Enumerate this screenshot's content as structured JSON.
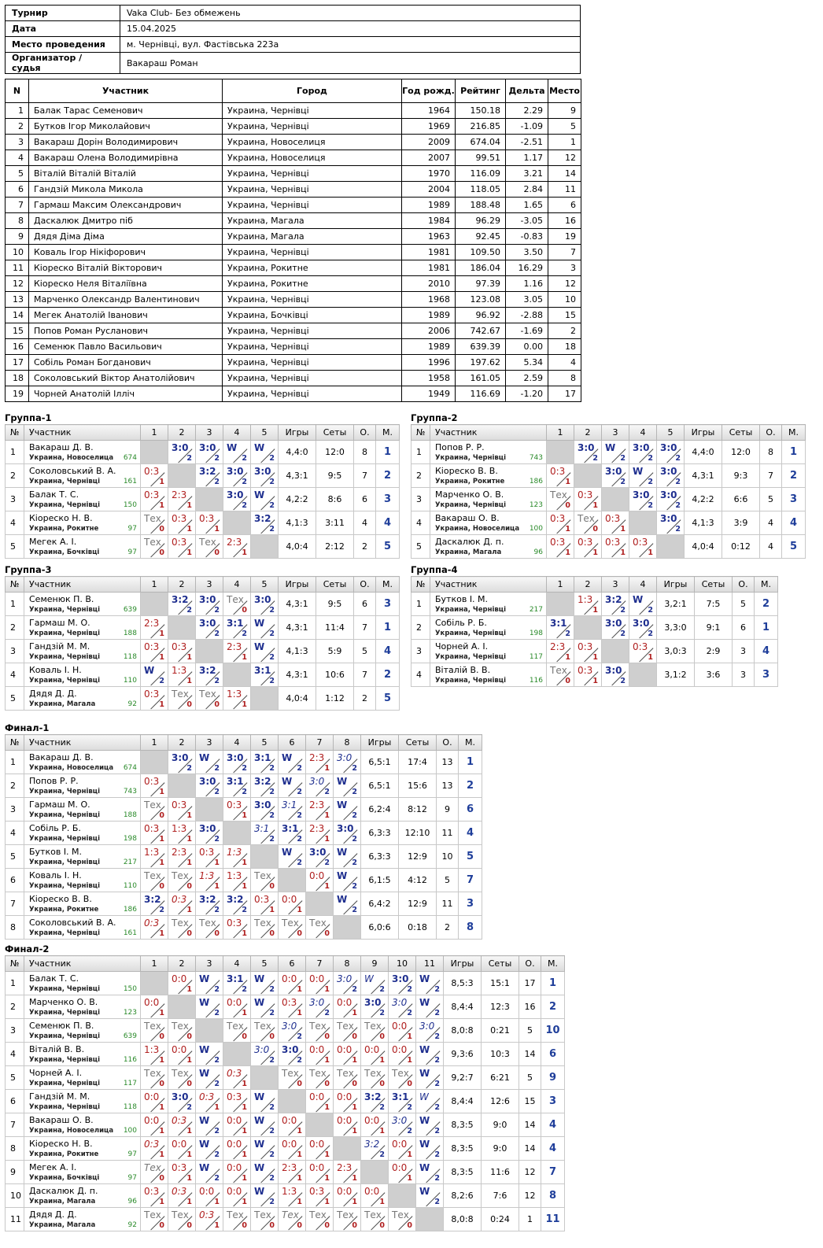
{
  "info": [
    {
      "k": "Турнир",
      "v": "Vaka Club- Без обмежень"
    },
    {
      "k": "Дата",
      "v": "15.04.2025"
    },
    {
      "k": "Место проведения",
      "v": "м. Чернівці, вул. Фастівська 223а"
    },
    {
      "k": "Организатор / судья",
      "v": "Вакараш Роман"
    }
  ],
  "players_header": [
    "N",
    "Участник",
    "Город",
    "Год рожд.",
    "Рейтинг",
    "Дельта",
    "Место"
  ],
  "players": [
    [
      "1",
      "Балак Тарас Семенович",
      "Украина, Чернівці",
      "1964",
      "150.18",
      "2.29",
      "9"
    ],
    [
      "2",
      "Бутков Ігор Миколайович",
      "Украина, Чернівці",
      "1969",
      "216.85",
      "-1.09",
      "5"
    ],
    [
      "3",
      "Вакараш Дорін Володимирович",
      "Украина, Новоселиця",
      "2009",
      "674.04",
      "-2.51",
      "1"
    ],
    [
      "4",
      "Вакараш Олена Володимирівна",
      "Украина, Новоселиця",
      "2007",
      "99.51",
      "1.17",
      "12"
    ],
    [
      "5",
      "Віталій Віталій Віталій",
      "Украина, Чернівці",
      "1970",
      "116.09",
      "3.21",
      "14"
    ],
    [
      "6",
      "Гандзій Микола Микола",
      "Украина, Чернівці",
      "2004",
      "118.05",
      "2.84",
      "11"
    ],
    [
      "7",
      "Гармаш Максим Олександрович",
      "Украина, Чернівці",
      "1989",
      "188.48",
      "1.65",
      "6"
    ],
    [
      "8",
      "Даскалюк Дмитро піб",
      "Украина, Магала",
      "1984",
      "96.29",
      "-3.05",
      "16"
    ],
    [
      "9",
      "Дядя Діма Діма",
      "Украина, Магала",
      "1963",
      "92.45",
      "-0.83",
      "19"
    ],
    [
      "10",
      "Коваль Ігор Нікіфорович",
      "Украина, Чернівці",
      "1981",
      "109.50",
      "3.50",
      "7"
    ],
    [
      "11",
      "Кіореско Віталій Вікторович",
      "Украина, Рокитне",
      "1981",
      "186.04",
      "16.29",
      "3"
    ],
    [
      "12",
      "Кіореско Неля Віталіївна",
      "Украина, Рокитне",
      "2010",
      "97.39",
      "1.16",
      "12"
    ],
    [
      "13",
      "Марченко Олександр Валентинович",
      "Украина, Чернівці",
      "1968",
      "123.08",
      "3.05",
      "10"
    ],
    [
      "14",
      "Мегек Анатолій Іванович",
      "Украина, Бочківці",
      "1989",
      "96.92",
      "-2.88",
      "15"
    ],
    [
      "15",
      "Попов Роман Русланович",
      "Украина, Чернівці",
      "2006",
      "742.67",
      "-1.69",
      "2"
    ],
    [
      "16",
      "Семенюк Павло Васильович",
      "Украина, Чернівці",
      "1989",
      "639.39",
      "0.00",
      "18"
    ],
    [
      "17",
      "Собіль Роман Богданович",
      "Украина, Чернівці",
      "1996",
      "197.62",
      "5.34",
      "4"
    ],
    [
      "18",
      "Соколовський Віктор Анатолійович",
      "Украина, Чернівці",
      "1958",
      "161.05",
      "2.59",
      "8"
    ],
    [
      "19",
      "Чорней Анатолій Ілліч",
      "Украина, Чернівці",
      "1949",
      "116.69",
      "-1.20",
      "17"
    ]
  ],
  "col_labels": {
    "num": "№",
    "player": "Участник",
    "games": "Игры",
    "sets": "Сеты",
    "points": "О.",
    "place": "М."
  },
  "groups": [
    {
      "title": "Группа-1",
      "rows": [
        {
          "n": "1",
          "name": "Вакараш Д. В.",
          "city": "Украина, Новоселица",
          "rating": "674",
          "cells": [
            "X",
            "w3:0/2",
            "w3:0/2",
            "wW/2",
            "wW/2"
          ],
          "games": "4,4:0",
          "sets": "12:0",
          "pts": "8",
          "place": "1"
        },
        {
          "n": "2",
          "name": "Соколовський В. А.",
          "city": "Украина, Чернівці",
          "rating": "161",
          "cells": [
            "l0:3/1",
            "X",
            "w3:2/2",
            "w3:0/2",
            "w3:0/2"
          ],
          "games": "4,3:1",
          "sets": "9:5",
          "pts": "7",
          "place": "2"
        },
        {
          "n": "3",
          "name": "Балак Т. С.",
          "city": "Украина, Чернівці",
          "rating": "150",
          "cells": [
            "l0:3/1",
            "l2:3/1",
            "X",
            "w3:0/2",
            "wW/2"
          ],
          "games": "4,2:2",
          "sets": "8:6",
          "pts": "6",
          "place": "3"
        },
        {
          "n": "4",
          "name": "Кіореско Н. В.",
          "city": "Украина, Рокитне",
          "rating": "97",
          "cells": [
            "tТех/0",
            "l0:3/1",
            "l0:3/1",
            "X",
            "w3:2/2"
          ],
          "games": "4,1:3",
          "sets": "3:11",
          "pts": "4",
          "place": "4"
        },
        {
          "n": "5",
          "name": "Мегек А. І.",
          "city": "Украина, Бочківці",
          "rating": "97",
          "cells": [
            "tТех/0",
            "l0:3/1",
            "tТех/0",
            "l2:3/1",
            "X"
          ],
          "games": "4,0:4",
          "sets": "2:12",
          "pts": "2",
          "place": "5"
        }
      ]
    },
    {
      "title": "Группа-2",
      "rows": [
        {
          "n": "1",
          "name": "Попов Р. Р.",
          "city": "Украина, Чернівці",
          "rating": "743",
          "cells": [
            "X",
            "w3:0/2",
            "wW/2",
            "w3:0/2",
            "w3:0/2"
          ],
          "games": "4,4:0",
          "sets": "12:0",
          "pts": "8",
          "place": "1"
        },
        {
          "n": "2",
          "name": "Кіореско В. В.",
          "city": "Украина, Рокитне",
          "rating": "186",
          "cells": [
            "l0:3/1",
            "X",
            "w3:0/2",
            "wW/2",
            "w3:0/2"
          ],
          "games": "4,3:1",
          "sets": "9:3",
          "pts": "7",
          "place": "2"
        },
        {
          "n": "3",
          "name": "Марченко О. В.",
          "city": "Украина, Чернівці",
          "rating": "123",
          "cells": [
            "tТех/0",
            "l0:3/1",
            "X",
            "w3:0/2",
            "w3:0/2"
          ],
          "games": "4,2:2",
          "sets": "6:6",
          "pts": "5",
          "place": "3"
        },
        {
          "n": "4",
          "name": "Вакараш О. В.",
          "city": "Украина, Новоселица",
          "rating": "100",
          "cells": [
            "l0:3/1",
            "tТех/0",
            "l0:3/1",
            "X",
            "w3:0/2"
          ],
          "games": "4,1:3",
          "sets": "3:9",
          "pts": "4",
          "place": "4"
        },
        {
          "n": "5",
          "name": "Даскалюк Д. п.",
          "city": "Украина, Магала",
          "rating": "96",
          "cells": [
            "l0:3/1",
            "l0:3/1",
            "l0:3/1",
            "l0:3/1",
            "X"
          ],
          "games": "4,0:4",
          "sets": "0:12",
          "pts": "4",
          "place": "5"
        }
      ]
    },
    {
      "title": "Группа-3",
      "rows": [
        {
          "n": "1",
          "name": "Семенюк П. В.",
          "city": "Украина, Чернівці",
          "rating": "639",
          "cells": [
            "X",
            "w3:2/2",
            "w3:0/2",
            "tТех/0",
            "w3:0/2"
          ],
          "games": "4,3:1",
          "sets": "9:5",
          "pts": "6",
          "place": "3"
        },
        {
          "n": "2",
          "name": "Гармаш М. О.",
          "city": "Украина, Чернівці",
          "rating": "188",
          "cells": [
            "l2:3/1",
            "X",
            "w3:0/2",
            "w3:1/2",
            "wW/2"
          ],
          "games": "4,3:1",
          "sets": "11:4",
          "pts": "7",
          "place": "1"
        },
        {
          "n": "3",
          "name": "Гандзій М. М.",
          "city": "Украина, Чернівці",
          "rating": "118",
          "cells": [
            "l0:3/1",
            "l0:3/1",
            "X",
            "l2:3/1",
            "wW/2"
          ],
          "games": "4,1:3",
          "sets": "5:9",
          "pts": "5",
          "place": "4"
        },
        {
          "n": "4",
          "name": "Коваль І. Н.",
          "city": "Украина, Чернівці",
          "rating": "110",
          "cells": [
            "wW/2",
            "l1:3/1",
            "w3:2/2",
            "X",
            "w3:1/2"
          ],
          "games": "4,3:1",
          "sets": "10:6",
          "pts": "7",
          "place": "2"
        },
        {
          "n": "5",
          "name": "Дядя Д. Д.",
          "city": "Украина, Магала",
          "rating": "92",
          "cells": [
            "l0:3/1",
            "tТех/0",
            "tТех/0",
            "l1:3/1",
            "X"
          ],
          "games": "4,0:4",
          "sets": "1:12",
          "pts": "2",
          "place": "5"
        }
      ]
    },
    {
      "title": "Группа-4",
      "rows": [
        {
          "n": "1",
          "name": "Бутков І. М.",
          "city": "Украина, Чернівці",
          "rating": "217",
          "cells": [
            "X",
            "l1:3/1",
            "w3:2/2",
            "wW/2"
          ],
          "games": "3,2:1",
          "sets": "7:5",
          "pts": "5",
          "place": "2"
        },
        {
          "n": "2",
          "name": "Собіль Р. Б.",
          "city": "Украина, Чернівці",
          "rating": "198",
          "cells": [
            "w3:1/2",
            "X",
            "w3:0/2",
            "w3:0/2"
          ],
          "games": "3,3:0",
          "sets": "9:1",
          "pts": "6",
          "place": "1"
        },
        {
          "n": "3",
          "name": "Чорней А. І.",
          "city": "Украина, Чернівці",
          "rating": "117",
          "cells": [
            "l2:3/1",
            "l0:3/1",
            "X",
            "l0:3/1"
          ],
          "games": "3,0:3",
          "sets": "2:9",
          "pts": "3",
          "place": "4"
        },
        {
          "n": "4",
          "name": "Віталій В. В.",
          "city": "Украина, Чернівці",
          "rating": "116",
          "cells": [
            "tТех/0",
            "l0:3/1",
            "w3:0/2",
            "X"
          ],
          "games": "3,1:2",
          "sets": "3:6",
          "pts": "3",
          "place": "3"
        }
      ]
    },
    {
      "title": "Финал-1",
      "rows": [
        {
          "n": "1",
          "name": "Вакараш Д. В.",
          "city": "Украина, Новоселица",
          "rating": "674",
          "cells": [
            "X",
            "w3:0/2",
            "wW/2",
            "w3:0/2",
            "w3:1/2",
            "wW/2",
            "l2:3/1",
            "wi3:0/2"
          ],
          "games": "6,5:1",
          "sets": "17:4",
          "pts": "13",
          "place": "1"
        },
        {
          "n": "2",
          "name": "Попов Р. Р.",
          "city": "Украина, Чернівці",
          "rating": "743",
          "cells": [
            "l0:3/1",
            "X",
            "w3:0/2",
            "w3:1/2",
            "w3:2/2",
            "wW/2",
            "wi3:0/2",
            "wW/2"
          ],
          "games": "6,5:1",
          "sets": "15:6",
          "pts": "13",
          "place": "2"
        },
        {
          "n": "3",
          "name": "Гармаш М. О.",
          "city": "Украина, Чернівці",
          "rating": "188",
          "cells": [
            "tТех/0",
            "l0:3/1",
            "X",
            "l0:3/1",
            "w3:0/2",
            "wi3:1/2",
            "l2:3/1",
            "wW/2"
          ],
          "games": "6,2:4",
          "sets": "8:12",
          "pts": "9",
          "place": "6"
        },
        {
          "n": "4",
          "name": "Собіль Р. Б.",
          "city": "Украина, Чернівці",
          "rating": "198",
          "cells": [
            "l0:3/1",
            "l1:3/1",
            "w3:0/2",
            "X",
            "wi3:1/2",
            "w3:1/2",
            "l2:3/1",
            "w3:0/2"
          ],
          "games": "6,3:3",
          "sets": "12:10",
          "pts": "11",
          "place": "4"
        },
        {
          "n": "5",
          "name": "Бутков І. М.",
          "city": "Украина, Чернівці",
          "rating": "217",
          "cells": [
            "l1:3/1",
            "l2:3/1",
            "l0:3/1",
            "li1:3/1",
            "X",
            "wW/2",
            "w3:0/2",
            "wW/2"
          ],
          "games": "6,3:3",
          "sets": "12:9",
          "pts": "10",
          "place": "5"
        },
        {
          "n": "6",
          "name": "Коваль І. Н.",
          "city": "Украина, Чернівці",
          "rating": "110",
          "cells": [
            "tТех/0",
            "tТех/0",
            "li1:3/1",
            "l1:3/1",
            "tТех/0",
            "X",
            "l0:0/1",
            "wW/2"
          ],
          "games": "6,1:5",
          "sets": "4:12",
          "pts": "5",
          "place": "7"
        },
        {
          "n": "7",
          "name": "Кіореско В. В.",
          "city": "Украина, Рокитне",
          "rating": "186",
          "cells": [
            "w3:2/2",
            "li0:3/1",
            "w3:2/2",
            "w3:2/2",
            "l0:3/1",
            "l0:0/1",
            "X",
            "wW/2"
          ],
          "games": "6,4:2",
          "sets": "12:9",
          "pts": "11",
          "place": "3"
        },
        {
          "n": "8",
          "name": "Соколовський В. А.",
          "city": "Украина, Чернівці",
          "rating": "161",
          "cells": [
            "li0:3/1",
            "tТех/0",
            "tТех/0",
            "l0:3/1",
            "tТех/0",
            "tТех/0",
            "tТех/0",
            "X"
          ],
          "games": "6,0:6",
          "sets": "0:18",
          "pts": "2",
          "place": "8"
        }
      ]
    },
    {
      "title": "Финал-2",
      "rows": [
        {
          "n": "1",
          "name": "Балак Т. С.",
          "city": "Украина, Чернівці",
          "rating": "150",
          "cells": [
            "X",
            "l0:0/1",
            "wW/2",
            "w3:1/2",
            "wW/2",
            "l0:0/1",
            "l0:0/1",
            "wi3:0/2",
            "wiW/2",
            "w3:0/2",
            "wW/2"
          ],
          "games": "8,5:3",
          "sets": "15:1",
          "pts": "17",
          "place": "1"
        },
        {
          "n": "2",
          "name": "Марченко О. В.",
          "city": "Украина, Чернівці",
          "rating": "123",
          "cells": [
            "l0:0/1",
            "X",
            "wW/2",
            "l0:0/1",
            "wW/2",
            "l0:3/1",
            "wi3:0/2",
            "l0:0/1",
            "w3:0/2",
            "wi3:0/2",
            "wW/2"
          ],
          "games": "8,4:4",
          "sets": "12:3",
          "pts": "16",
          "place": "2"
        },
        {
          "n": "3",
          "name": "Семенюк П. В.",
          "city": "Украина, Чернівці",
          "rating": "639",
          "cells": [
            "tТех/0",
            "tТех/0",
            "X",
            "tТех/0",
            "tТех/0",
            "wi3:0/2",
            "tТех/0",
            "tТех/0",
            "tТех/0",
            "l0:0/1",
            "wi3:0/2"
          ],
          "games": "8,0:8",
          "sets": "0:21",
          "pts": "5",
          "place": "10"
        },
        {
          "n": "4",
          "name": "Віталій В. В.",
          "city": "Украина, Чернівці",
          "rating": "116",
          "cells": [
            "l1:3/1",
            "l0:0/1",
            "wW/2",
            "X",
            "wi3:0/2",
            "w3:0/2",
            "l0:0/1",
            "l0:0/1",
            "l0:0/1",
            "l0:0/1",
            "wW/2"
          ],
          "games": "9,3:6",
          "sets": "10:3",
          "pts": "14",
          "place": "6"
        },
        {
          "n": "5",
          "name": "Чорней А. І.",
          "city": "Украина, Чернівці",
          "rating": "117",
          "cells": [
            "tТех/0",
            "tТех/0",
            "wW/2",
            "li0:3/1",
            "X",
            "tТех/0",
            "tТех/0",
            "tТех/0",
            "tТех/0",
            "tТех/0",
            "wW/2"
          ],
          "games": "9,2:7",
          "sets": "6:21",
          "pts": "5",
          "place": "9"
        },
        {
          "n": "6",
          "name": "Гандзій М. М.",
          "city": "Украина, Чернівці",
          "rating": "118",
          "cells": [
            "l0:0/1",
            "w3:0/2",
            "li0:3/1",
            "l0:3/1",
            "wW/2",
            "X",
            "l0:0/1",
            "l0:0/1",
            "w3:2/2",
            "w3:1/2",
            "wiW/2"
          ],
          "games": "8,4:4",
          "sets": "12:6",
          "pts": "15",
          "place": "3"
        },
        {
          "n": "7",
          "name": "Вакараш О. В.",
          "city": "Украина, Новоселица",
          "rating": "100",
          "cells": [
            "l0:0/1",
            "li0:3/1",
            "wW/2",
            "l0:0/1",
            "wW/2",
            "l0:0/1",
            "X",
            "l0:0/1",
            "l0:0/1",
            "wi3:0/2",
            "wW/2"
          ],
          "games": "8,3:5",
          "sets": "9:0",
          "pts": "14",
          "place": "4"
        },
        {
          "n": "8",
          "name": "Кіореско Н. В.",
          "city": "Украина, Рокитне",
          "rating": "97",
          "cells": [
            "li0:3/1",
            "l0:0/1",
            "wW/2",
            "l0:0/1",
            "wW/2",
            "l0:0/1",
            "l0:0/1",
            "X",
            "wi3:2/2",
            "l0:0/1",
            "wW/2"
          ],
          "games": "8,3:5",
          "sets": "9:0",
          "pts": "14",
          "place": "4"
        },
        {
          "n": "9",
          "name": "Мегек А. І.",
          "city": "Украина, Бочківці",
          "rating": "97",
          "cells": [
            "tiТех/0",
            "l0:3/1",
            "wW/2",
            "l0:0/1",
            "wW/2",
            "l2:3/1",
            "l0:0/1",
            "l2:3/1",
            "X",
            "l0:0/1",
            "wW/2"
          ],
          "games": "8,3:5",
          "sets": "11:6",
          "pts": "12",
          "place": "7"
        },
        {
          "n": "10",
          "name": "Даскалюк Д. п.",
          "city": "Украина, Магала",
          "rating": "96",
          "cells": [
            "l0:3/1",
            "li0:3/1",
            "l0:0/1",
            "l0:0/1",
            "wW/2",
            "l1:3/1",
            "l0:3/1",
            "l0:0/1",
            "l0:0/1",
            "X",
            "wW/2"
          ],
          "games": "8,2:6",
          "sets": "7:6",
          "pts": "12",
          "place": "8"
        },
        {
          "n": "11",
          "name": "Дядя Д. Д.",
          "city": "Украина, Магала",
          "rating": "92",
          "cells": [
            "tТех/0",
            "tТех/0",
            "li0:3/1",
            "tТех/0",
            "tТех/0",
            "tiТех/0",
            "tТех/0",
            "tТех/0",
            "tТех/0",
            "tТех/0",
            "X"
          ],
          "games": "8,0:8",
          "sets": "0:24",
          "pts": "1",
          "place": "11"
        }
      ]
    }
  ]
}
